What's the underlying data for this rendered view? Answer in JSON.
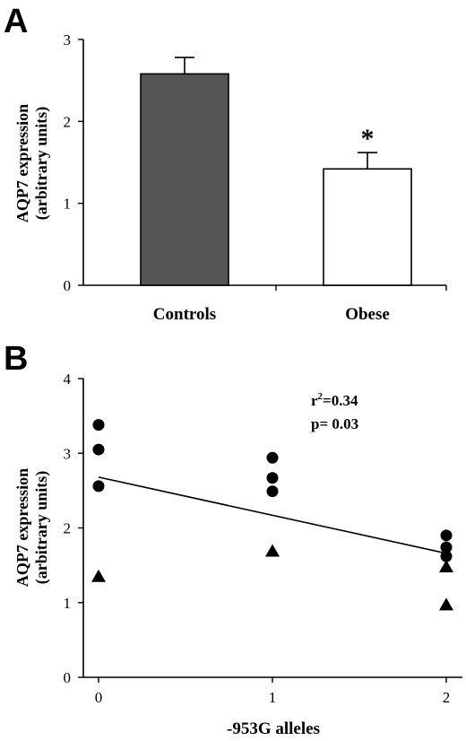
{
  "chart_data": [
    {
      "panel": "A",
      "type": "bar",
      "categories": [
        "Controls",
        "Obese"
      ],
      "values": [
        2.58,
        1.42
      ],
      "errors": [
        0.2,
        0.2
      ],
      "bar_colors": [
        "#555555",
        "#ffffff"
      ],
      "significance": [
        "",
        "*"
      ],
      "ylabel": [
        "AQP7 expression",
        "(arbitrary units)"
      ],
      "xlabel": "",
      "ylim": [
        0,
        3
      ],
      "yticks": [
        0,
        1,
        2,
        3
      ],
      "grid": false
    },
    {
      "panel": "B",
      "type": "scatter",
      "series": [
        {
          "marker": "circle",
          "points": [
            [
              0,
              3.38
            ],
            [
              0,
              3.05
            ],
            [
              0,
              2.56
            ],
            [
              1,
              2.94
            ],
            [
              1,
              2.67
            ],
            [
              1,
              2.49
            ],
            [
              2,
              1.9
            ],
            [
              2,
              1.74
            ],
            [
              2,
              1.62
            ]
          ]
        },
        {
          "marker": "triangle",
          "points": [
            [
              0,
              1.36
            ],
            [
              1,
              1.7
            ],
            [
              2,
              1.49
            ],
            [
              2,
              0.98
            ]
          ]
        }
      ],
      "regression": {
        "x": [
          0,
          2
        ],
        "y": [
          2.68,
          1.66
        ]
      },
      "annotation": {
        "r2_prefix": "r",
        "r2_sup": "2",
        "r2_value": "=0.34",
        "p": "p= 0.03"
      },
      "xlabel": "-953G alleles",
      "ylabel": [
        "AQP7 expression",
        "(arbitrary units)"
      ],
      "xticks": [
        0,
        1,
        2
      ],
      "xlim": [
        -0.08,
        2.06
      ],
      "ylim": [
        0,
        4
      ],
      "yticks": [
        0,
        1,
        2,
        3,
        4
      ],
      "grid": false
    }
  ],
  "panel_a": {
    "letter": "A"
  },
  "panel_b": {
    "letter": "B"
  }
}
